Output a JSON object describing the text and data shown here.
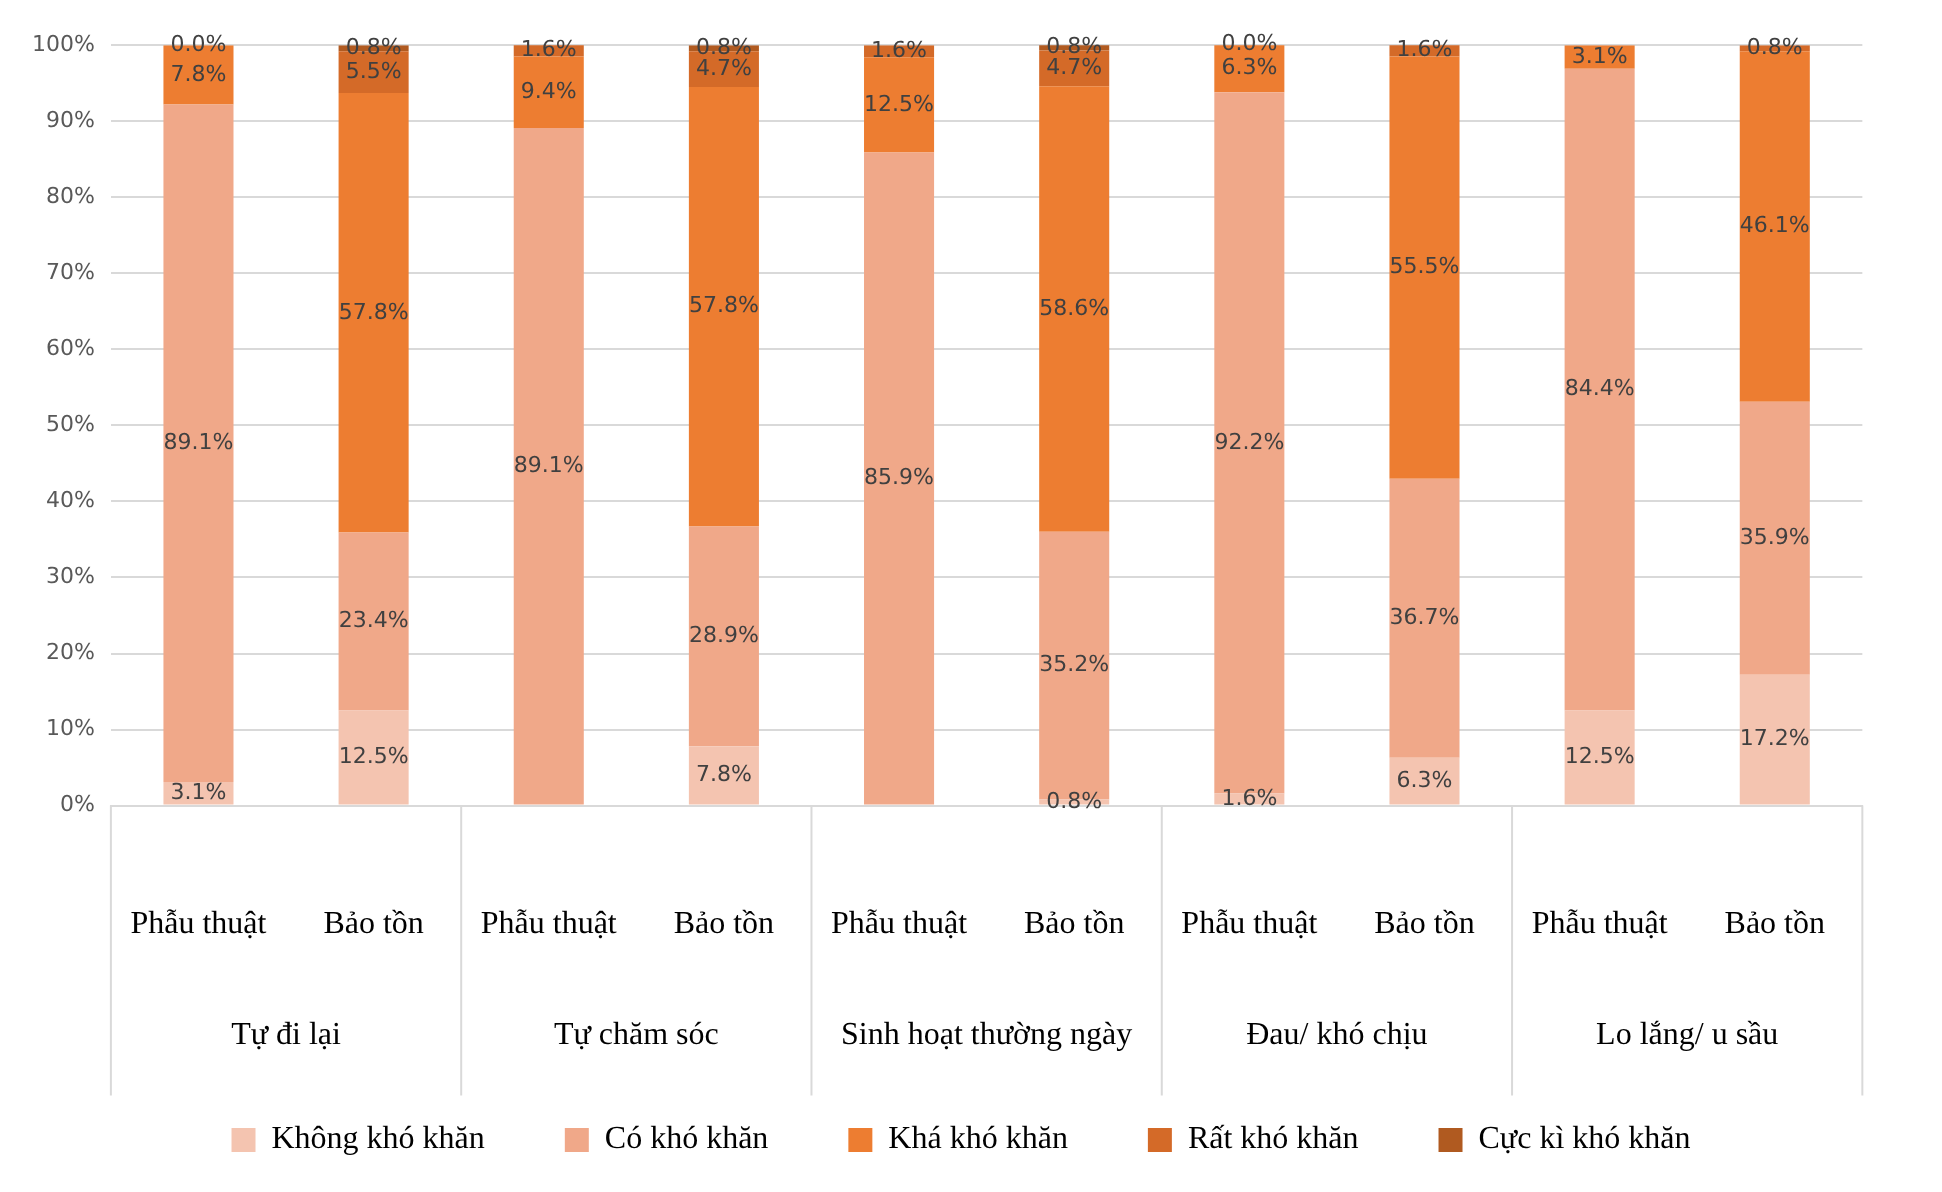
{
  "chart_data": {
    "type": "bar",
    "stacked": true,
    "categories": [
      "Phẫu thuật",
      "Bảo tồn",
      "Phẫu thuật",
      "Bảo tồn",
      "Phẫu thuật",
      "Bảo tồn",
      "Phẫu thuật",
      "Bảo tồn",
      "Phẫu thuật",
      "Bảo tồn"
    ],
    "annotations": [
      "Tự đi lại",
      "Tự chăm sóc",
      "Sinh hoạt thường ngày",
      "Đau/ khó chịu",
      "Lo lắng/ u sầu"
    ],
    "series": [
      {
        "name": "Không khó khăn",
        "color": "#f4c4b0",
        "values": [
          3.1,
          12.5,
          null,
          7.8,
          null,
          0.8,
          1.6,
          6.3,
          12.5,
          17.2
        ],
        "value_labels": [
          "3.1%",
          "12.5%",
          null,
          "7.8%",
          null,
          "0.8%",
          "1.6%",
          "6.3%",
          "12.5%",
          "17.2%"
        ]
      },
      {
        "name": "Có khó khăn",
        "color": "#f0a889",
        "values": [
          89.1,
          23.4,
          89.1,
          28.9,
          85.9,
          35.2,
          92.2,
          36.7,
          84.4,
          35.9
        ],
        "value_labels": [
          "89.1%",
          "23.4%",
          "89.1%",
          "28.9%",
          "85.9%",
          "35.2%",
          "92.2%",
          "36.7%",
          "84.4%",
          "35.9%"
        ]
      },
      {
        "name": "Khá khó khăn",
        "color": "#ed7d31",
        "values": [
          7.8,
          57.8,
          9.4,
          57.8,
          12.5,
          58.6,
          6.3,
          55.5,
          3.1,
          46.1
        ],
        "value_labels": [
          "7.8%",
          "57.8%",
          "9.4%",
          "57.8%",
          "12.5%",
          "58.6%",
          "6.3%",
          "55.5%",
          "3.1%",
          "46.1%"
        ]
      },
      {
        "name": "Rất khó khăn",
        "color": "#d46a28",
        "values": [
          0.0,
          5.5,
          1.6,
          4.7,
          1.6,
          4.7,
          0.0,
          1.6,
          null,
          0.8
        ],
        "value_labels": [
          "0.0%",
          "5.5%",
          "1.6%",
          "4.7%",
          "1.6%",
          "4.7%",
          "0.0%",
          "1.6%",
          null,
          "0.8%"
        ]
      },
      {
        "name": "Cực kì khó khăn",
        "color": "#b05a20",
        "values": [
          null,
          0.8,
          null,
          0.8,
          null,
          0.8,
          null,
          null,
          null,
          null
        ],
        "value_labels": [
          null,
          "0.8%",
          null,
          "0.8%",
          null,
          "0.8%",
          null,
          null,
          null,
          null
        ]
      }
    ],
    "ylim": [
      0,
      100
    ],
    "yticks": [
      {
        "value": 0,
        "label": "0%"
      },
      {
        "value": 10,
        "label": "10%"
      },
      {
        "value": 20,
        "label": "20%"
      },
      {
        "value": 30,
        "label": "30%"
      },
      {
        "value": 40,
        "label": "40%"
      },
      {
        "value": 50,
        "label": "50%"
      },
      {
        "value": 60,
        "label": "60%"
      },
      {
        "value": 70,
        "label": "70%"
      },
      {
        "value": 80,
        "label": "80%"
      },
      {
        "value": 90,
        "label": "90%"
      },
      {
        "value": 100,
        "label": "100%"
      }
    ],
    "grid": "y",
    "legend": "bottom"
  }
}
